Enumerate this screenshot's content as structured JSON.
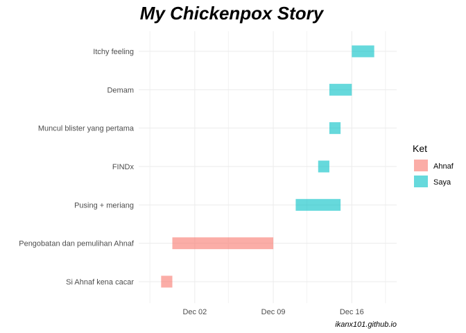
{
  "chart_data": {
    "type": "bar",
    "orientation": "horizontal-gantt",
    "title": "My Chickenpox Story",
    "caption": "ikanx101.github.io",
    "xlabel": "",
    "ylabel": "",
    "x_ticks": [
      "Dec 02",
      "Dec 09",
      "Dec 16"
    ],
    "x_range": [
      "2019-11-27",
      "2019-12-20"
    ],
    "grid": true,
    "legend": {
      "title": "Ket",
      "placement": "right",
      "entries": [
        {
          "name": "Ahnaf",
          "color": "#F8766D"
        },
        {
          "name": "Saya",
          "color": "#00BFC4"
        }
      ]
    },
    "categories": [
      "Itchy feeling",
      "Demam",
      "Muncul blister yang pertama",
      "FINDx",
      "Pusing + meriang",
      "Pengobatan dan pemulihan Ahnaf",
      "Si Ahnaf kena cacar"
    ],
    "tasks": [
      {
        "label": "Itchy feeling",
        "start": "2019-12-16",
        "end": "2019-12-18",
        "group": "Saya"
      },
      {
        "label": "Demam",
        "start": "2019-12-14",
        "end": "2019-12-16",
        "group": "Saya"
      },
      {
        "label": "Muncul blister yang pertama",
        "start": "2019-12-14",
        "end": "2019-12-15",
        "group": "Saya"
      },
      {
        "label": "FINDx",
        "start": "2019-12-13",
        "end": "2019-12-14",
        "group": "Saya"
      },
      {
        "label": "Pusing + meriang",
        "start": "2019-12-11",
        "end": "2019-12-15",
        "group": "Saya"
      },
      {
        "label": "Pengobatan dan pemulihan Ahnaf",
        "start": "2019-11-30",
        "end": "2019-12-09",
        "group": "Ahnaf"
      },
      {
        "label": "Si Ahnaf kena cacar",
        "start": "2019-11-29",
        "end": "2019-11-30",
        "group": "Ahnaf"
      }
    ]
  }
}
